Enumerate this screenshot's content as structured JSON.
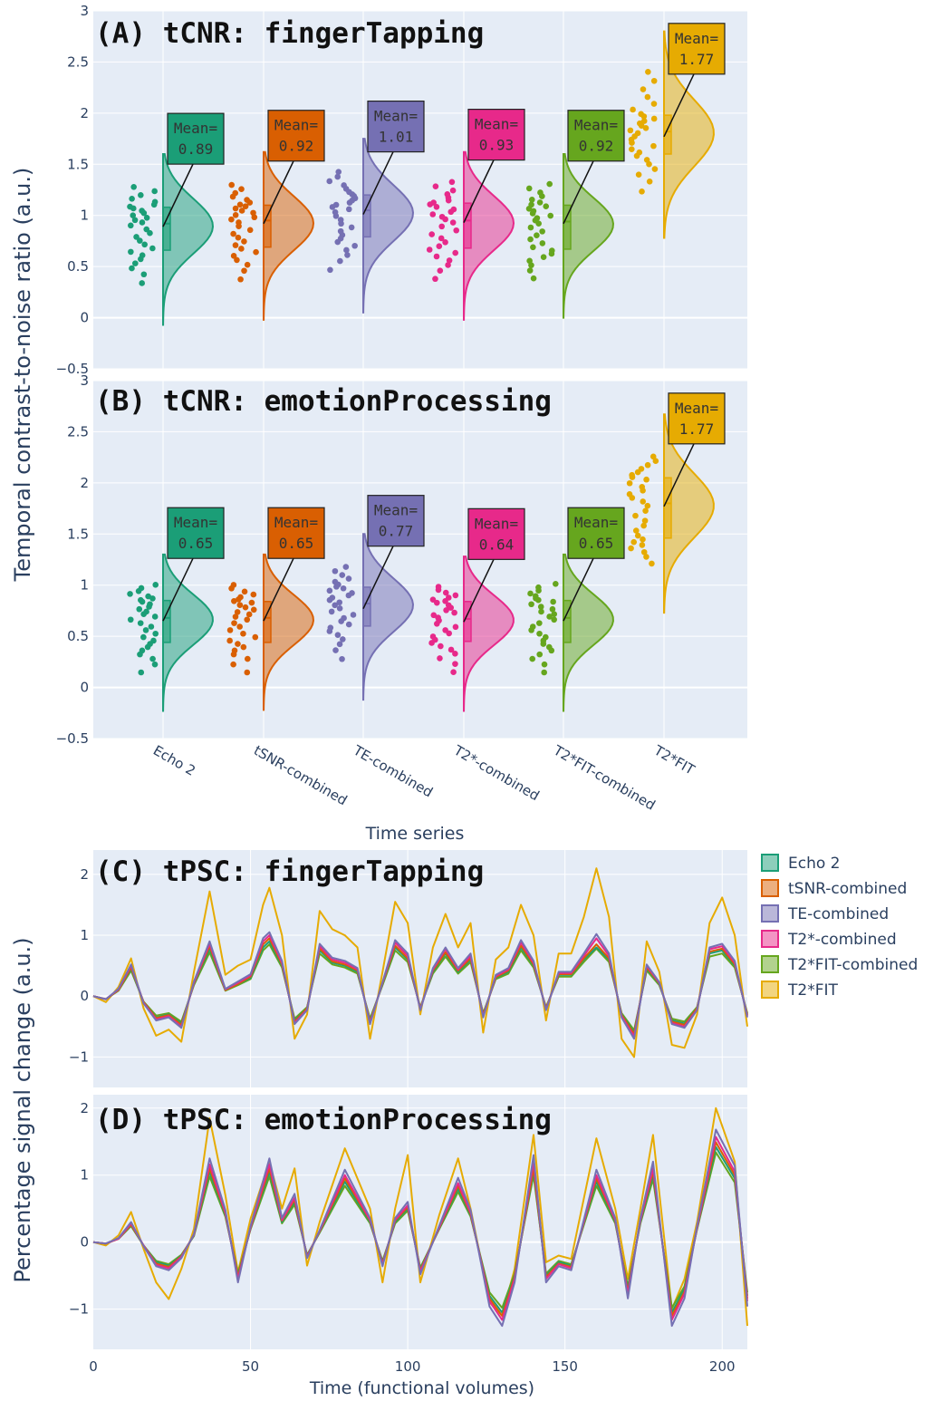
{
  "figure": {
    "shared_y_title_top": "Temporal contrast-to-noise ratio  (a.u.)",
    "shared_y_title_bottom": "Percentage signal change  (a.u.)"
  },
  "colors": {
    "Echo 2": "#1b9e77",
    "tSNR-combined": "#d95f02",
    "TE-combined": "#7570b3",
    "T2*-combined": "#e7298a",
    "T2*FIT-combined": "#66a61e",
    "T2*FIT": "#e6ab02",
    "plot_bg": "#e5ecf6"
  },
  "legend": {
    "placement": "right",
    "items": [
      "Echo 2",
      "tSNR-combined",
      "TE-combined",
      "T2*-combined",
      "T2*FIT-combined",
      "T2*FIT"
    ]
  },
  "chart_data": [
    {
      "type": "raincloud",
      "title": "(A) tCNR: fingerTapping",
      "ylim": [
        -0.5,
        3
      ],
      "yticks": [
        "−0.5",
        "0",
        "0.5",
        "1",
        "1.5",
        "2",
        "2.5",
        "3"
      ],
      "categories": [
        "Echo 2",
        "tSNR-combined",
        "TE-combined",
        "T2*-combined",
        "T2*FIT-combined",
        "T2*FIT"
      ],
      "series": [
        {
          "name": "Echo 2",
          "mean": 0.89,
          "mean_label": "Mean=\n0.89",
          "q1": 0.66,
          "median": 0.92,
          "q3": 1.08,
          "whisker": [
            0.22,
            1.3
          ],
          "kde_range": [
            -0.07,
            1.6
          ]
        },
        {
          "name": "tSNR-combined",
          "mean": 0.92,
          "mean_label": "Mean=\n0.92",
          "q1": 0.69,
          "median": 0.95,
          "q3": 1.1,
          "whisker": [
            0.26,
            1.32
          ],
          "kde_range": [
            -0.02,
            1.62
          ]
        },
        {
          "name": "TE-combined",
          "mean": 1.01,
          "mean_label": "Mean=\n1.01",
          "q1": 0.79,
          "median": 1.05,
          "q3": 1.2,
          "whisker": [
            0.35,
            1.45
          ],
          "kde_range": [
            0.05,
            1.75
          ]
        },
        {
          "name": "T2*-combined",
          "mean": 0.93,
          "mean_label": "Mean=\n0.93",
          "q1": 0.68,
          "median": 0.95,
          "q3": 1.12,
          "whisker": [
            0.27,
            1.35
          ],
          "kde_range": [
            -0.02,
            1.62
          ]
        },
        {
          "name": "T2*FIT-combined",
          "mean": 0.92,
          "mean_label": "Mean=\n0.92",
          "q1": 0.67,
          "median": 0.94,
          "q3": 1.1,
          "whisker": [
            0.28,
            1.33
          ],
          "kde_range": [
            0.0,
            1.6
          ]
        },
        {
          "name": "T2*FIT",
          "mean": 1.77,
          "mean_label": "Mean=\n1.77",
          "q1": 1.6,
          "median": 1.82,
          "q3": 1.98,
          "whisker": [
            1.1,
            2.45
          ],
          "kde_range": [
            0.78,
            2.8
          ]
        }
      ]
    },
    {
      "type": "raincloud",
      "title": "(B) tCNR: emotionProcessing",
      "ylim": [
        -0.5,
        3
      ],
      "yticks": [
        "−0.5",
        "0",
        "0.5",
        "1",
        "1.5",
        "2",
        "2.5",
        "3"
      ],
      "xlabel": "Time series",
      "categories": [
        "Echo 2",
        "tSNR-combined",
        "TE-combined",
        "T2*-combined",
        "T2*FIT-combined",
        "T2*FIT"
      ],
      "series": [
        {
          "name": "Echo 2",
          "mean": 0.65,
          "mean_label": "Mean=\n0.65",
          "q1": 0.44,
          "median": 0.68,
          "q3": 0.85,
          "whisker": [
            0.04,
            1.02
          ],
          "kde_range": [
            -0.23,
            1.3
          ]
        },
        {
          "name": "tSNR-combined",
          "mean": 0.65,
          "mean_label": "Mean=\n0.65",
          "q1": 0.44,
          "median": 0.68,
          "q3": 0.84,
          "whisker": [
            0.04,
            1.02
          ],
          "kde_range": [
            -0.22,
            1.3
          ]
        },
        {
          "name": "TE-combined",
          "mean": 0.77,
          "mean_label": "Mean=\n0.77",
          "q1": 0.6,
          "median": 0.82,
          "q3": 0.98,
          "whisker": [
            0.16,
            1.2
          ],
          "kde_range": [
            -0.12,
            1.5
          ]
        },
        {
          "name": "T2*-combined",
          "mean": 0.64,
          "mean_label": "Mean=\n0.64",
          "q1": 0.45,
          "median": 0.67,
          "q3": 0.84,
          "whisker": [
            0.04,
            1.0
          ],
          "kde_range": [
            -0.23,
            1.28
          ]
        },
        {
          "name": "T2*FIT-combined",
          "mean": 0.65,
          "mean_label": "Mean=\n0.65",
          "q1": 0.44,
          "median": 0.68,
          "q3": 0.85,
          "whisker": [
            0.04,
            1.03
          ],
          "kde_range": [
            -0.23,
            1.3
          ]
        },
        {
          "name": "T2*FIT",
          "mean": 1.77,
          "mean_label": "Mean=\n1.77",
          "q1": 1.46,
          "median": 1.8,
          "q3": 2.05,
          "whisker": [
            1.12,
            2.28
          ],
          "kde_range": [
            0.73,
            2.67
          ]
        }
      ]
    },
    {
      "type": "line",
      "title": "(C) tPSC: fingerTapping",
      "ylim": [
        -1.5,
        2.4
      ],
      "yticks": [
        "−1",
        "0",
        "1",
        "2"
      ],
      "xlim": [
        0,
        208
      ],
      "x": [
        0,
        4,
        8,
        12,
        16,
        20,
        24,
        28,
        32,
        37,
        42,
        46,
        50,
        54,
        56,
        60,
        64,
        68,
        72,
        76,
        80,
        84,
        88,
        92,
        96,
        100,
        104,
        108,
        112,
        116,
        120,
        124,
        128,
        132,
        136,
        140,
        144,
        148,
        152,
        156,
        160,
        164,
        168,
        172,
        176,
        180,
        184,
        188,
        192,
        196,
        200,
        204,
        208
      ],
      "series": [
        {
          "name": "Echo 2",
          "values": [
            0,
            -0.05,
            0.1,
            0.45,
            -0.1,
            -0.35,
            -0.3,
            -0.45,
            0.2,
            0.78,
            0.1,
            0.2,
            0.3,
            0.8,
            0.9,
            0.5,
            -0.4,
            -0.2,
            0.75,
            0.55,
            0.5,
            0.4,
            -0.4,
            0.2,
            0.8,
            0.6,
            -0.2,
            0.4,
            0.7,
            0.4,
            0.6,
            -0.3,
            0.3,
            0.4,
            0.8,
            0.5,
            -0.2,
            0.35,
            0.35,
            0.6,
            0.8,
            0.6,
            -0.3,
            -0.6,
            0.45,
            0.2,
            -0.4,
            -0.45,
            -0.2,
            0.7,
            0.75,
            0.5,
            -0.3
          ]
        },
        {
          "name": "tSNR-combined",
          "values": [
            0,
            -0.05,
            0.1,
            0.47,
            -0.1,
            -0.36,
            -0.31,
            -0.47,
            0.21,
            0.82,
            0.1,
            0.2,
            0.32,
            0.85,
            0.95,
            0.52,
            -0.42,
            -0.2,
            0.78,
            0.57,
            0.52,
            0.42,
            -0.42,
            0.21,
            0.83,
            0.62,
            -0.2,
            0.42,
            0.72,
            0.42,
            0.62,
            -0.31,
            0.31,
            0.42,
            0.83,
            0.52,
            -0.2,
            0.36,
            0.36,
            0.62,
            0.85,
            0.62,
            -0.31,
            -0.62,
            0.47,
            0.21,
            -0.42,
            -0.47,
            -0.2,
            0.73,
            0.78,
            0.52,
            -0.31
          ]
        },
        {
          "name": "TE-combined",
          "values": [
            0,
            -0.05,
            0.12,
            0.52,
            -0.12,
            -0.4,
            -0.35,
            -0.52,
            0.24,
            0.9,
            0.12,
            0.24,
            0.36,
            0.95,
            1.05,
            0.58,
            -0.46,
            -0.23,
            0.86,
            0.63,
            0.58,
            0.46,
            -0.46,
            0.23,
            0.92,
            0.7,
            -0.23,
            0.46,
            0.8,
            0.46,
            0.7,
            -0.35,
            0.35,
            0.46,
            0.92,
            0.58,
            -0.23,
            0.4,
            0.4,
            0.7,
            1.02,
            0.7,
            -0.35,
            -0.7,
            0.52,
            0.23,
            -0.46,
            -0.52,
            -0.23,
            0.8,
            0.86,
            0.58,
            -0.35
          ]
        },
        {
          "name": "T2*-combined",
          "values": [
            0,
            -0.05,
            0.11,
            0.5,
            -0.11,
            -0.38,
            -0.33,
            -0.5,
            0.22,
            0.86,
            0.11,
            0.22,
            0.34,
            0.9,
            1.0,
            0.55,
            -0.44,
            -0.22,
            0.82,
            0.6,
            0.55,
            0.44,
            -0.44,
            0.22,
            0.88,
            0.66,
            -0.22,
            0.44,
            0.77,
            0.44,
            0.66,
            -0.33,
            0.33,
            0.44,
            0.88,
            0.55,
            -0.22,
            0.38,
            0.38,
            0.66,
            0.95,
            0.66,
            -0.33,
            -0.66,
            0.5,
            0.22,
            -0.44,
            -0.5,
            -0.22,
            0.77,
            0.82,
            0.55,
            -0.33
          ]
        },
        {
          "name": "T2*FIT-combined",
          "values": [
            0,
            -0.05,
            0.09,
            0.42,
            -0.09,
            -0.32,
            -0.28,
            -0.42,
            0.18,
            0.72,
            0.09,
            0.18,
            0.28,
            0.75,
            0.85,
            0.47,
            -0.37,
            -0.18,
            0.7,
            0.52,
            0.47,
            0.37,
            -0.37,
            0.18,
            0.75,
            0.56,
            -0.18,
            0.37,
            0.65,
            0.37,
            0.56,
            -0.28,
            0.28,
            0.37,
            0.75,
            0.47,
            -0.18,
            0.32,
            0.32,
            0.56,
            0.78,
            0.56,
            -0.28,
            -0.56,
            0.42,
            0.18,
            -0.37,
            -0.42,
            -0.18,
            0.65,
            0.7,
            0.47,
            -0.28
          ]
        },
        {
          "name": "T2*FIT",
          "values": [
            0,
            -0.1,
            0.15,
            0.62,
            -0.2,
            -0.65,
            -0.55,
            -0.75,
            0.4,
            1.72,
            0.35,
            0.5,
            0.6,
            1.5,
            1.78,
            1.0,
            -0.7,
            -0.3,
            1.4,
            1.1,
            1.0,
            0.8,
            -0.7,
            0.4,
            1.55,
            1.2,
            -0.3,
            0.8,
            1.35,
            0.8,
            1.2,
            -0.6,
            0.6,
            0.8,
            1.5,
            1.0,
            -0.4,
            0.7,
            0.7,
            1.3,
            2.1,
            1.3,
            -0.7,
            -1.0,
            0.9,
            0.4,
            -0.8,
            -0.85,
            -0.3,
            1.2,
            1.62,
            1.0,
            -0.5
          ]
        }
      ]
    },
    {
      "type": "line",
      "title": "(D) tPSC: emotionProcessing",
      "ylim": [
        -1.6,
        2.2
      ],
      "yticks": [
        "−1",
        "0",
        "1",
        "2"
      ],
      "xlim": [
        0,
        208
      ],
      "xticks": [
        "0",
        "50",
        "100",
        "150",
        "200"
      ],
      "xlabel": "Time (functional volumes)",
      "x": [
        0,
        4,
        8,
        12,
        16,
        20,
        24,
        28,
        32,
        37,
        42,
        46,
        50,
        56,
        60,
        64,
        68,
        72,
        80,
        88,
        92,
        96,
        100,
        104,
        110,
        116,
        120,
        126,
        130,
        134,
        140,
        144,
        148,
        152,
        160,
        166,
        170,
        174,
        178,
        184,
        188,
        192,
        198,
        204,
        208
      ],
      "series": [
        {
          "name": "Echo 2",
          "values": [
            0,
            -0.02,
            0.05,
            0.25,
            -0.05,
            -0.3,
            -0.35,
            -0.2,
            0.1,
            1.05,
            0.4,
            -0.5,
            0.2,
            1.05,
            0.3,
            0.6,
            -0.2,
            0.15,
            0.9,
            0.3,
            -0.3,
            0.3,
            0.5,
            -0.4,
            0.2,
            0.8,
            0.4,
            -0.8,
            -1.05,
            -0.5,
            1.05,
            -0.5,
            -0.3,
            -0.35,
            0.9,
            0.3,
            -0.7,
            0.3,
            1.0,
            -1.05,
            -0.7,
            0.2,
            1.42,
            0.95,
            -0.8
          ]
        },
        {
          "name": "tSNR-combined",
          "values": [
            0,
            -0.02,
            0.05,
            0.26,
            -0.05,
            -0.32,
            -0.37,
            -0.21,
            0.11,
            1.1,
            0.42,
            -0.52,
            0.21,
            1.1,
            0.32,
            0.63,
            -0.21,
            0.16,
            0.95,
            0.32,
            -0.32,
            0.32,
            0.52,
            -0.42,
            0.21,
            0.84,
            0.42,
            -0.84,
            -1.1,
            -0.52,
            1.1,
            -0.52,
            -0.32,
            -0.37,
            0.95,
            0.32,
            -0.74,
            0.32,
            1.05,
            -1.1,
            -0.74,
            0.21,
            1.49,
            1.0,
            -0.84
          ]
        },
        {
          "name": "TE-combined",
          "values": [
            0,
            -0.02,
            0.06,
            0.3,
            -0.06,
            -0.36,
            -0.42,
            -0.24,
            0.12,
            1.25,
            0.48,
            -0.6,
            0.24,
            1.25,
            0.36,
            0.72,
            -0.24,
            0.18,
            1.08,
            0.36,
            -0.36,
            0.36,
            0.6,
            -0.48,
            0.24,
            0.96,
            0.48,
            -0.96,
            -1.25,
            -0.6,
            1.3,
            -0.6,
            -0.36,
            -0.42,
            1.08,
            0.36,
            -0.84,
            0.36,
            1.2,
            -1.25,
            -0.84,
            0.24,
            1.68,
            1.14,
            -0.96
          ]
        },
        {
          "name": "T2*-combined",
          "values": [
            0,
            -0.02,
            0.05,
            0.28,
            -0.05,
            -0.34,
            -0.39,
            -0.22,
            0.11,
            1.16,
            0.44,
            -0.55,
            0.22,
            1.16,
            0.33,
            0.66,
            -0.22,
            0.17,
            1.0,
            0.33,
            -0.33,
            0.33,
            0.55,
            -0.44,
            0.22,
            0.88,
            0.44,
            -0.88,
            -1.16,
            -0.55,
            1.2,
            -0.55,
            -0.33,
            -0.39,
            1.0,
            0.33,
            -0.77,
            0.33,
            1.1,
            -1.16,
            -0.77,
            0.22,
            1.57,
            1.05,
            -0.88
          ]
        },
        {
          "name": "T2*FIT-combined",
          "values": [
            0,
            -0.02,
            0.05,
            0.24,
            -0.05,
            -0.28,
            -0.33,
            -0.19,
            0.09,
            0.98,
            0.38,
            -0.47,
            0.19,
            0.98,
            0.28,
            0.56,
            -0.19,
            0.14,
            0.84,
            0.28,
            -0.28,
            0.28,
            0.47,
            -0.38,
            0.19,
            0.75,
            0.38,
            -0.75,
            -0.98,
            -0.47,
            1.0,
            -0.47,
            -0.28,
            -0.33,
            0.84,
            0.28,
            -0.66,
            0.28,
            0.94,
            -0.98,
            -0.66,
            0.19,
            1.34,
            0.89,
            -0.75
          ]
        },
        {
          "name": "T2*FIT",
          "values": [
            0,
            -0.05,
            0.1,
            0.45,
            -0.1,
            -0.6,
            -0.85,
            -0.4,
            0.2,
            1.85,
            0.7,
            -0.45,
            0.35,
            1.2,
            0.5,
            1.1,
            -0.35,
            0.3,
            1.4,
            0.5,
            -0.6,
            0.5,
            1.3,
            -0.6,
            0.4,
            1.25,
            0.5,
            -0.9,
            -1.1,
            -0.4,
            1.6,
            -0.3,
            -0.2,
            -0.25,
            1.55,
            0.5,
            -0.55,
            0.5,
            1.6,
            -1.0,
            -0.55,
            0.3,
            2.0,
            1.2,
            -1.25
          ]
        }
      ]
    }
  ]
}
